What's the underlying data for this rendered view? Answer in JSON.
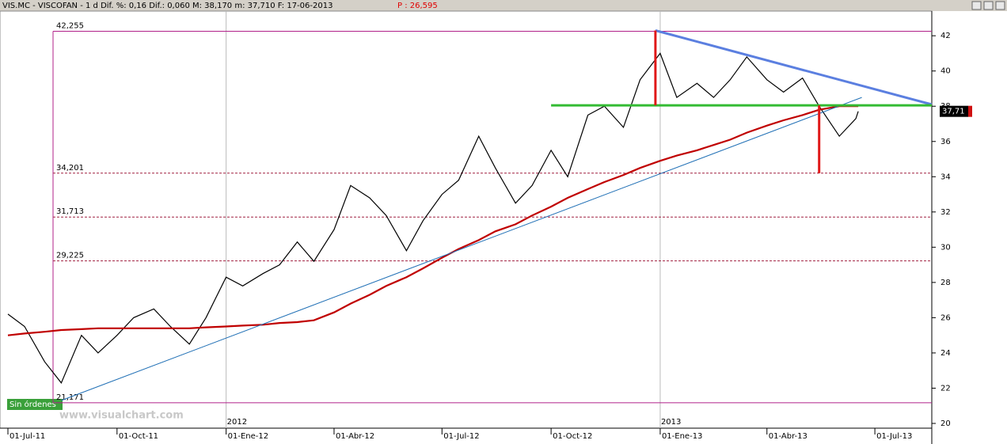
{
  "chart_data": {
    "type": "line",
    "title": "VIS.MC - VISCOFAN -  1 d Dif. %: 0,16 Dif.: 0,060 M: 38,170 m: 37,710 F: 17-06-2013",
    "subtitle": "P : 26,595",
    "watermark": "www.visualchart.com",
    "status": "Sin órdenes",
    "year_labels": [
      {
        "value": "01-Jan-12",
        "label": "2012"
      },
      {
        "value": "01-Jan-13",
        "label": "2013"
      }
    ],
    "x": [
      "01-Jul-11",
      "15-Jul-11",
      "01-Aug-11",
      "15-Aug-11",
      "01-Sep-11",
      "15-Sep-11",
      "01-Oct-11",
      "15-Oct-11",
      "01-Nov-11",
      "15-Nov-11",
      "01-Dec-11",
      "15-Dec-11",
      "01-Jan-12",
      "15-Jan-12",
      "01-Feb-12",
      "15-Feb-12",
      "01-Mar-12",
      "15-Mar-12",
      "01-Apr-12",
      "15-Apr-12",
      "01-May-12",
      "15-May-12",
      "01-Jun-12",
      "15-Jun-12",
      "01-Jul-12",
      "15-Jul-12",
      "01-Aug-12",
      "15-Aug-12",
      "01-Sep-12",
      "15-Sep-12",
      "01-Oct-12",
      "15-Oct-12",
      "01-Nov-12",
      "15-Nov-12",
      "01-Dec-12",
      "15-Dec-12",
      "01-Jan-13",
      "15-Jan-13",
      "01-Feb-13",
      "15-Feb-13",
      "01-Mar-13",
      "15-Mar-13",
      "01-Apr-13",
      "15-Apr-13",
      "01-May-13",
      "15-May-13",
      "01-Jun-13",
      "15-Jun-13",
      "17-Jun-13"
    ],
    "series": [
      {
        "color": "#000000",
        "values": [
          26.2,
          25.5,
          23.5,
          22.3,
          25.0,
          24.0,
          25.0,
          26.0,
          26.5,
          25.5,
          24.5,
          26.0,
          28.3,
          27.8,
          28.5,
          29.0,
          30.3,
          29.2,
          31.0,
          33.5,
          32.8,
          31.8,
          29.8,
          31.5,
          33.0,
          33.8,
          36.3,
          34.5,
          32.5,
          33.5,
          35.5,
          34.0,
          37.5,
          38.0,
          36.8,
          39.5,
          41.0,
          38.5,
          39.3,
          38.5,
          39.5,
          40.8,
          39.5,
          38.8,
          39.6,
          38.0,
          36.3,
          37.3,
          37.71
        ]
      },
      {
        "color": "#c00000",
        "values": [
          25.0,
          25.1,
          25.2,
          25.3,
          25.35,
          25.4,
          25.4,
          25.4,
          25.4,
          25.4,
          25.4,
          25.45,
          25.5,
          25.55,
          25.6,
          25.7,
          25.75,
          25.85,
          26.3,
          26.8,
          27.3,
          27.8,
          28.3,
          28.8,
          29.4,
          29.9,
          30.4,
          30.9,
          31.3,
          31.8,
          32.3,
          32.8,
          33.3,
          33.7,
          34.1,
          34.5,
          34.9,
          35.2,
          35.5,
          35.8,
          36.1,
          36.5,
          36.9,
          37.2,
          37.5,
          37.8,
          38.0,
          38.0,
          38.0
        ]
      }
    ],
    "lines": [
      {
        "color": "#1f6fb5",
        "x": [
          "15-Aug-11",
          "20-Jun-13"
        ],
        "values": [
          21.3,
          38.5
        ]
      },
      {
        "color": "#5b7fe0",
        "x": [
          "28-Dec-12",
          "18-Aug-13"
        ],
        "values": [
          42.3,
          38.1
        ]
      },
      {
        "color": "#33bb33",
        "x": [
          "01-Oct-12",
          "18-Aug-13"
        ],
        "values": [
          38.05,
          38.05
        ]
      },
      {
        "color": "#e01818",
        "x": [
          "28-Dec-12",
          "28-Dec-12"
        ],
        "values": [
          38.05,
          42.3
        ]
      },
      {
        "color": "#e01818",
        "x": [
          "15-May-13",
          "15-May-13"
        ],
        "values": [
          38.05,
          34.2
        ]
      }
    ],
    "levels": [
      {
        "value": 42.255,
        "label": "42,255"
      },
      {
        "value": 34.201,
        "label": "34,201"
      },
      {
        "value": 31.713,
        "label": "31,713"
      },
      {
        "value": 29.225,
        "label": "29,225"
      },
      {
        "value": 21.171,
        "label": "21,171"
      }
    ],
    "last_price": {
      "value": 37.71,
      "label": "37,71"
    },
    "xlim": [
      "01-Jul-11",
      "18-Aug-13"
    ],
    "xticks": [
      {
        "value": "01-Jul-11",
        "label": "01-Jul-11"
      },
      {
        "value": "01-Oct-11",
        "label": "01-Oct-11"
      },
      {
        "value": "01-Jan-12",
        "label": "01-Ene-12"
      },
      {
        "value": "01-Apr-12",
        "label": "01-Abr-12"
      },
      {
        "value": "01-Jul-12",
        "label": "01-Jul-12"
      },
      {
        "value": "01-Oct-12",
        "label": "01-Oct-12"
      },
      {
        "value": "01-Jan-13",
        "label": "01-Ene-13"
      },
      {
        "value": "01-Apr-13",
        "label": "01-Abr-13"
      },
      {
        "value": "01-Jul-13",
        "label": "01-Jul-13"
      }
    ],
    "ylim": [
      19.73,
      43.4
    ],
    "yticks": [
      20,
      22,
      24,
      26,
      28,
      30,
      32,
      34,
      36,
      38,
      40,
      42
    ],
    "grid": false
  }
}
